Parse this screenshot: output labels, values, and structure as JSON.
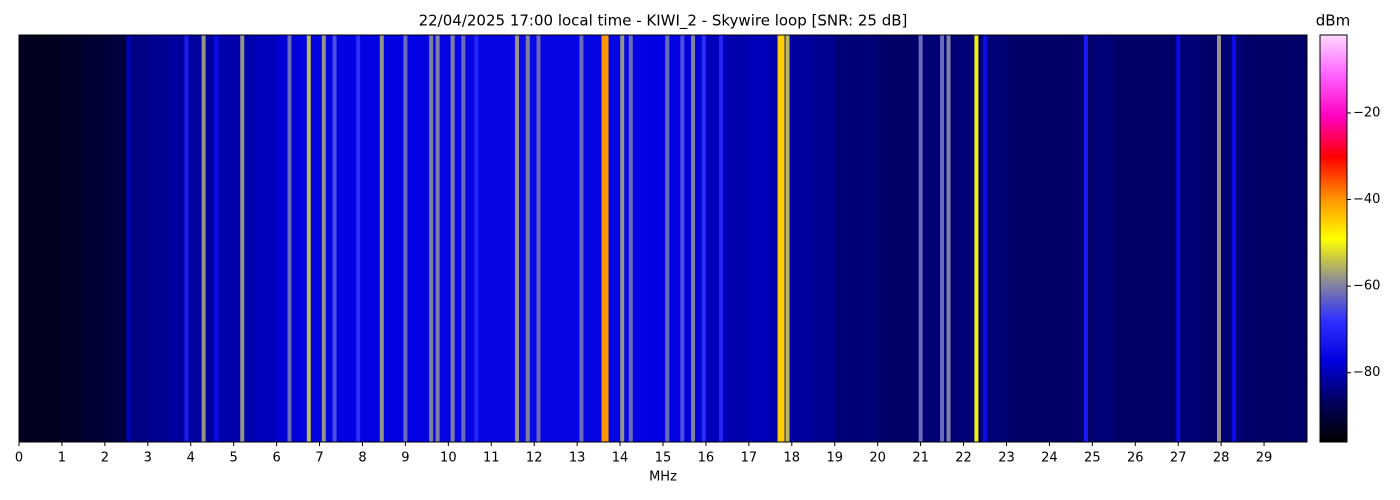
{
  "chart_data": {
    "type": "spectrogram",
    "title": "22/04/2025 17:00 local time - KIWI_2 - Skywire loop [SNR: 25 dB]",
    "x_label": "MHz",
    "colorbar_label": "dBm",
    "xlim": [
      0,
      30
    ],
    "xticks": [
      0,
      1,
      2,
      3,
      4,
      5,
      6,
      7,
      8,
      9,
      10,
      11,
      12,
      13,
      14,
      15,
      16,
      17,
      18,
      19,
      20,
      21,
      22,
      23,
      24,
      25,
      26,
      27,
      28,
      29
    ],
    "zlim": [
      -96,
      -2
    ],
    "zticks": [
      {
        "value": -80,
        "label": "−80"
      },
      {
        "value": -60,
        "label": "−60"
      },
      {
        "value": -40,
        "label": "−40"
      },
      {
        "value": -20,
        "label": "−20"
      }
    ],
    "colormap": [
      "#000000",
      "#000060",
      "#0000e0",
      "#3030ff",
      "#909090",
      "#ffff00",
      "#ff9000",
      "#ff0000",
      "#ff00c0",
      "#ff60ff",
      "#ffd8ff"
    ],
    "x": [
      0,
      0.5,
      1,
      1.5,
      2,
      2.5,
      3,
      3.5,
      4,
      4.5,
      5,
      5.5,
      6,
      6.5,
      7,
      7.5,
      8,
      8.5,
      9,
      9.5,
      10,
      10.5,
      11,
      11.5,
      12,
      12.5,
      13,
      13.5,
      14,
      14.5,
      15,
      15.5,
      16,
      16.5,
      17,
      17.5,
      18,
      18.5,
      19,
      19.5,
      20,
      20.5,
      21,
      21.5,
      22,
      22.5,
      23,
      23.5,
      24,
      24.5,
      25,
      25.5,
      26,
      26.5,
      27,
      27.5,
      28,
      28.5,
      29,
      29.5
    ],
    "values": [
      -93,
      -93,
      -92,
      -91,
      -90,
      -84,
      -83,
      -82,
      -82,
      -81,
      -81,
      -80,
      -78,
      -77,
      -77,
      -77,
      -77,
      -77,
      -77,
      -76,
      -76,
      -76,
      -76,
      -75,
      -76,
      -76,
      -76,
      -76,
      -76,
      -77,
      -77,
      -78,
      -80,
      -81,
      -80,
      -81,
      -82,
      -83,
      -85,
      -85,
      -86,
      -86,
      -85,
      -85,
      -85,
      -85,
      -86,
      -86,
      -86,
      -86,
      -85,
      -86,
      -86,
      -86,
      -85,
      -86,
      -85,
      -86,
      -86,
      -86
    ],
    "signals": {
      "x": [
        2.55,
        3.9,
        4.3,
        4.6,
        5.2,
        6.3,
        6.75,
        7.1,
        7.35,
        7.9,
        8.45,
        9.0,
        9.6,
        9.75,
        10.1,
        10.35,
        10.65,
        11.6,
        11.85,
        12.1,
        13.1,
        13.65,
        14.05,
        14.25,
        15.1,
        15.45,
        15.7,
        15.95,
        16.35,
        17.75,
        17.9,
        21.0,
        21.5,
        21.65,
        22.3,
        22.5,
        24.85,
        27.0,
        27.95,
        28.3
      ],
      "values": [
        -80,
        -72,
        -58,
        -75,
        -58,
        -62,
        -55,
        -58,
        -65,
        -68,
        -58,
        -62,
        -60,
        -60,
        -60,
        -62,
        -70,
        -58,
        -60,
        -62,
        -62,
        -40,
        -58,
        -62,
        -62,
        -65,
        -60,
        -68,
        -70,
        -45,
        -55,
        -62,
        -62,
        -60,
        -50,
        -75,
        -72,
        -75,
        -58,
        -75
      ]
    }
  }
}
